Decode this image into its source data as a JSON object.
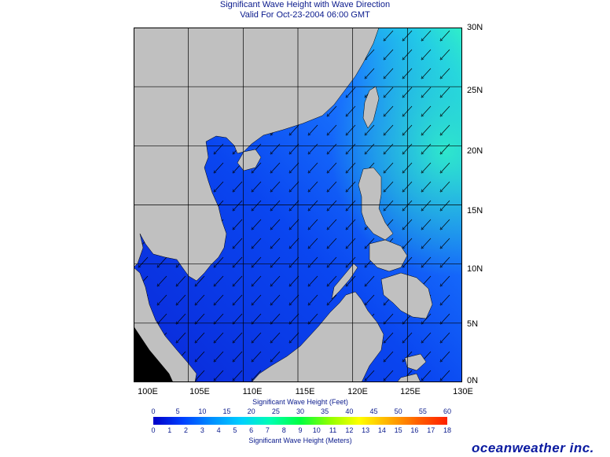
{
  "title": "Significant Wave Height with Wave Direction",
  "subtitle": "Valid For Oct-23-2004 06:00 GMT",
  "lat_labels": [
    "30N",
    "25N",
    "20N",
    "15N",
    "10N",
    "5N",
    "0N"
  ],
  "lon_labels": [
    "100E",
    "105E",
    "110E",
    "115E",
    "120E",
    "125E",
    "130E"
  ],
  "colorbar": {
    "feet_caption": "Significant Wave Height (Feet)",
    "meters_caption": "Significant Wave Height (Meters)",
    "feet_ticks": [
      "0",
      "5",
      "10",
      "15",
      "20",
      "25",
      "30",
      "35",
      "40",
      "45",
      "50",
      "55",
      "60"
    ],
    "meter_ticks": [
      "0",
      "1",
      "2",
      "3",
      "4",
      "5",
      "6",
      "7",
      "8",
      "9",
      "10",
      "11",
      "12",
      "13",
      "14",
      "15",
      "16",
      "17",
      "18"
    ]
  },
  "logo": "oceanweather inc.",
  "colors": {
    "land": "#c0c0c0",
    "sea_low": "#0a32e6",
    "sea_mid": "#1a7cff",
    "sea_high": "#28e6c8",
    "title": "#0a1a8c"
  },
  "wave_direction": "southwest"
}
